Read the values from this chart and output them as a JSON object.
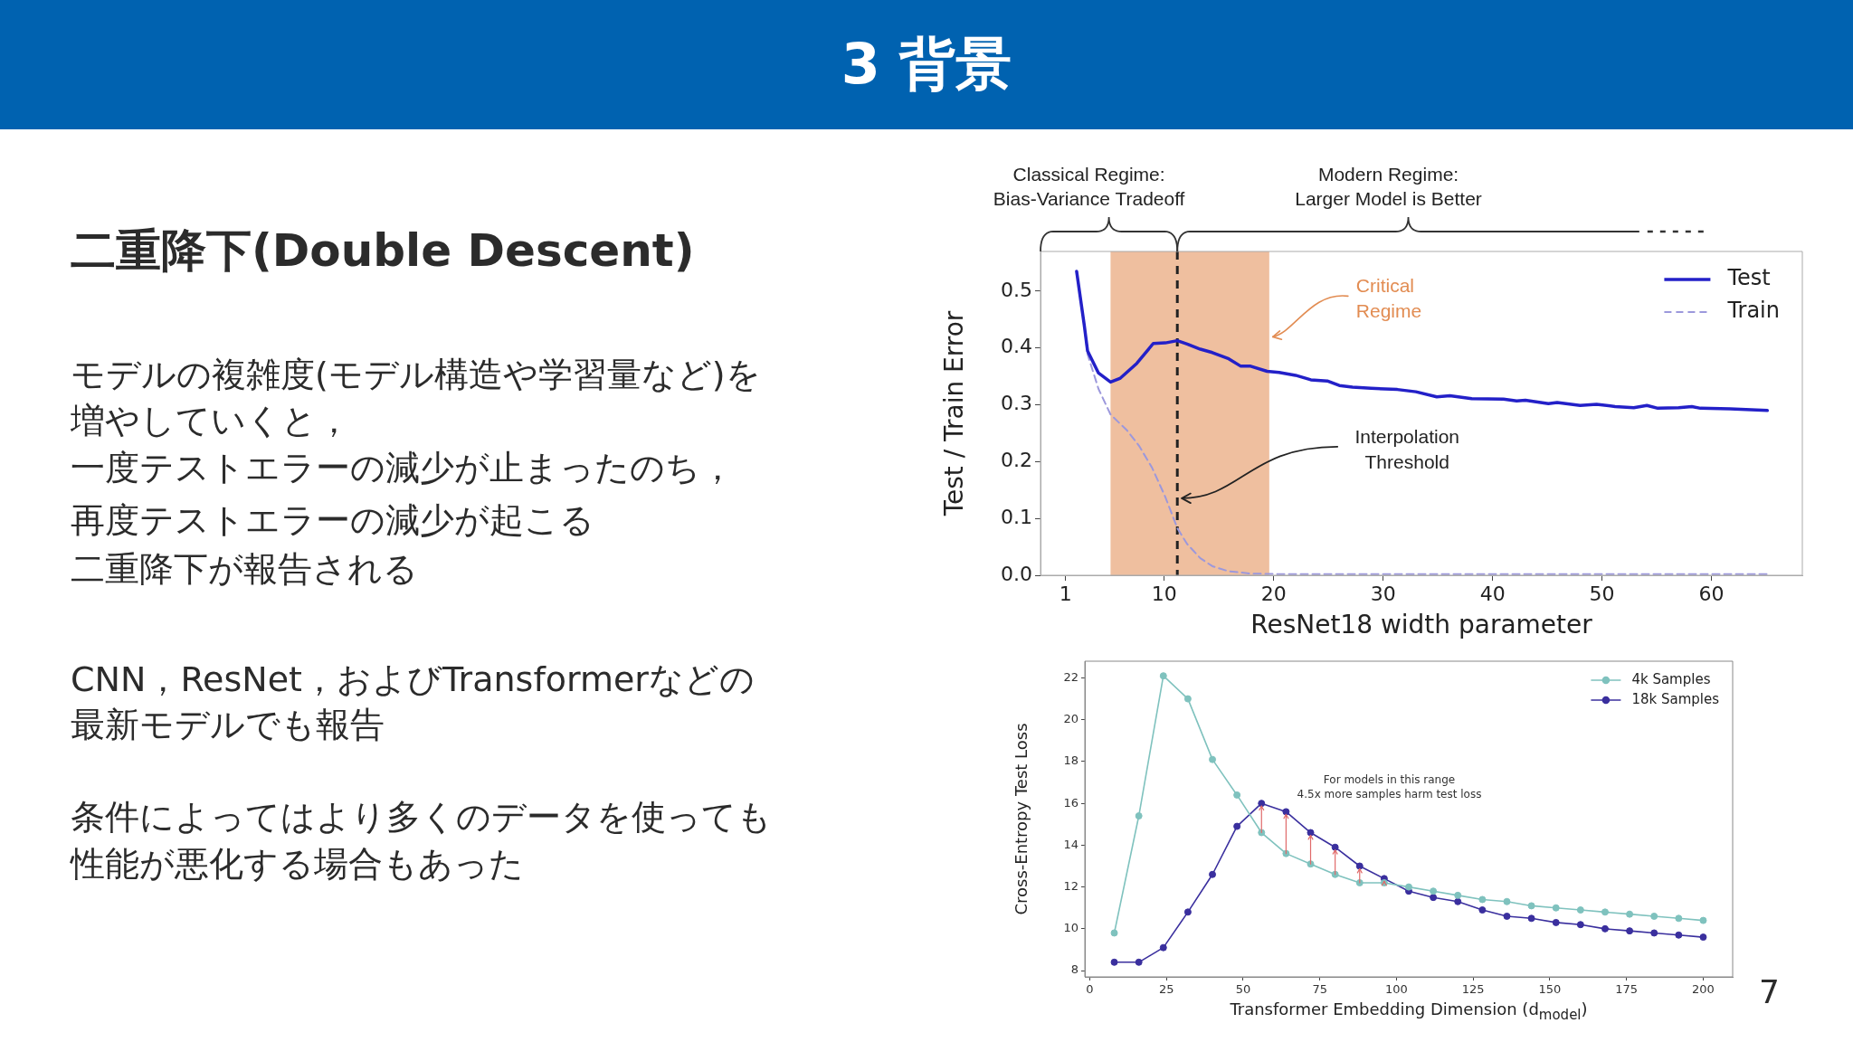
{
  "chart_data": [
    {
      "type": "other",
      "title": "3 背景",
      "subtitle": "二重降下(Double Descent)",
      "annotations": [
        "モデルの複雑度(モデル構造や学習量など)を",
        "増やしていくと，",
        "一度テストエラーの減少が止まったのち，",
        "再度テストエラーの減少が起こる",
        "二重降下が報告される",
        "CNN，ResNet，およびTransformerなどの",
        "最新モデルでも報告",
        "条件によってはより多くのデータを使っても",
        "性能が悪化する場合もあった",
        "7"
      ]
    },
    {
      "type": "line",
      "xlabel": "ResNet18 width parameter",
      "ylabel": "Test / Train Error",
      "xlim": [
        -1.3,
        68.3
      ],
      "ylim": [
        0,
        0.57
      ],
      "xticks": [
        1,
        10,
        20,
        30,
        40,
        50,
        60
      ],
      "yticks": [
        {
          "value": 0,
          "label": "0.0"
        },
        0.1,
        0.2,
        0.3,
        0.4,
        0.5
      ],
      "legend": "top right",
      "series": [
        {
          "name": "Test",
          "color": "#2320c8",
          "x": [
            2,
            2.7,
            3,
            4,
            5.1,
            6,
            7.5,
            9,
            10.1,
            11.2,
            12.1,
            13.3,
            14.4,
            15.9,
            17,
            17.9,
            19.4,
            20.5,
            22,
            23.4,
            24.9,
            26,
            27.2,
            28.9,
            31.3,
            33,
            34.9,
            36.1,
            38.1,
            41,
            42.2,
            43,
            45.1,
            45.9,
            48,
            49.5,
            51.2,
            52.9,
            54.1,
            55.1,
            57,
            58.2,
            59,
            61.7,
            65.1
          ],
          "values": [
            0.535,
            0.44,
            0.395,
            0.356,
            0.34,
            0.347,
            0.373,
            0.408,
            0.409,
            0.413,
            0.407,
            0.398,
            0.392,
            0.381,
            0.368,
            0.368,
            0.359,
            0.357,
            0.352,
            0.344,
            0.342,
            0.334,
            0.331,
            0.329,
            0.327,
            0.323,
            0.314,
            0.316,
            0.311,
            0.31,
            0.307,
            0.308,
            0.302,
            0.304,
            0.299,
            0.301,
            0.297,
            0.295,
            0.299,
            0.294,
            0.295,
            0.297,
            0.294,
            0.293,
            0.29
          ]
        },
        {
          "name": "Train",
          "color": "#9c98dc",
          "line_style": "dashed",
          "x": [
            2,
            2.7,
            3,
            4,
            5.1,
            6.6,
            7.7,
            8.9,
            10.1,
            11.2,
            12.1,
            13.3,
            14.4,
            15.9,
            17.9,
            20.5,
            30,
            40,
            50,
            60,
            65.1
          ],
          "values": [
            0.535,
            0.44,
            0.389,
            0.328,
            0.283,
            0.255,
            0.228,
            0.189,
            0.138,
            0.083,
            0.055,
            0.03,
            0.016,
            0.007,
            0.003,
            0.002,
            0.002,
            0.002,
            0.002,
            0.002,
            0.002
          ]
        }
      ],
      "bands": [
        {
          "axis": "x",
          "from": 5.1,
          "to": 19.6,
          "label": "Critical\nRegime",
          "color": "#efbf9f"
        }
      ],
      "ref_lines": [
        {
          "axis": "x",
          "value": 11.2,
          "label": "Interpolation\nThreshold",
          "color": "#222222",
          "line_style": "dashed"
        }
      ],
      "annotations": [
        "Classical Regime:\nBias-Variance Tradeoff",
        "Modern Regime:\nLarger Model is Better"
      ]
    },
    {
      "type": "line",
      "xlabel": "Transformer Embedding Dimension (d$_{model}$)",
      "ylabel": "Cross-Entropy Test Loss",
      "x": [
        8,
        16,
        24,
        32,
        40,
        48,
        56,
        64,
        72,
        80,
        88,
        96,
        104,
        112,
        120,
        128,
        136,
        144,
        152,
        160,
        168,
        176,
        184,
        192,
        200
      ],
      "xlim": [
        -1.6,
        209.6
      ],
      "ylim": [
        7.7,
        22.8
      ],
      "xticks": [
        0,
        25,
        50,
        75,
        100,
        125,
        150,
        175,
        200
      ],
      "yticks": [
        8,
        10,
        12,
        14,
        16,
        18,
        20,
        22
      ],
      "legend": "top right",
      "marker": "circle",
      "series": [
        {
          "name": "4k Samples",
          "color": "#7fc2be",
          "values": [
            9.8,
            15.4,
            22.1,
            21.0,
            18.1,
            16.4,
            14.6,
            13.6,
            13.1,
            12.6,
            12.2,
            12.2,
            12.0,
            11.8,
            11.6,
            11.4,
            11.3,
            11.1,
            11.0,
            10.9,
            10.8,
            10.7,
            10.6,
            10.5,
            10.4
          ]
        },
        {
          "name": "18k Samples",
          "color": "#3a2f9e",
          "values": [
            8.4,
            8.4,
            9.1,
            10.8,
            12.6,
            14.9,
            16.0,
            15.6,
            14.6,
            13.9,
            13.0,
            12.4,
            11.8,
            11.5,
            11.3,
            10.9,
            10.6,
            10.5,
            10.3,
            10.2,
            10.0,
            9.9,
            9.8,
            9.7,
            9.6
          ]
        }
      ],
      "annotations": [
        "For models in this range\n4.5x more samples harm test loss"
      ]
    }
  ]
}
